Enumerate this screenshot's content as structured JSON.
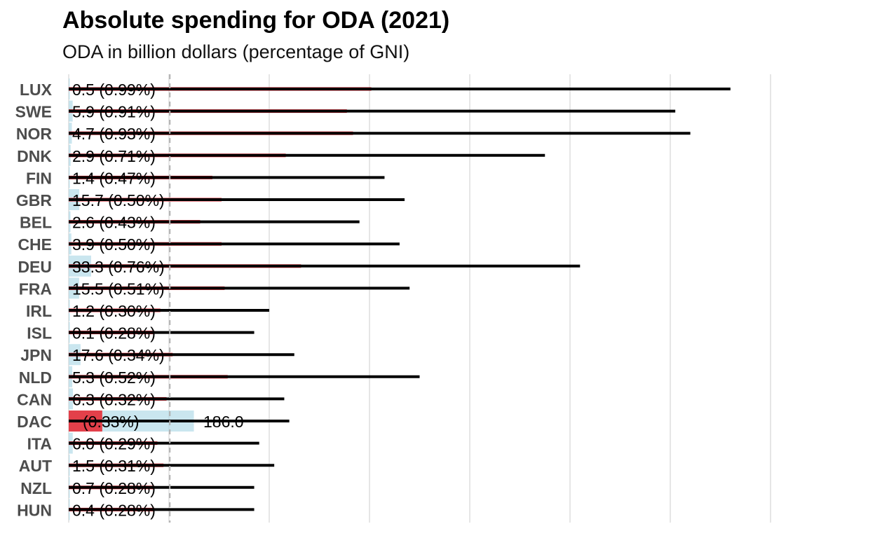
{
  "chart_data": {
    "type": "bar",
    "title": "Absolute spending for ODA (2021)",
    "subtitle": "ODA in billion dollars (percentage of GNI)",
    "xlabel": "",
    "ylabel": "",
    "grid": true,
    "colors": {
      "oda_bar": "#add8e6",
      "gni_share_bar": "#e8222d",
      "reference_line": "#000000",
      "dashed_line": "#b0b0b0",
      "grid": "#e6e6e6"
    },
    "categories": [
      "LUX",
      "SWE",
      "NOR",
      "DNK",
      "FIN",
      "GBR",
      "BEL",
      "CHE",
      "DEU",
      "FRA",
      "IRL",
      "ISL",
      "JPN",
      "NLD",
      "CAN",
      "DAC",
      "ITA",
      "AUT",
      "NZL",
      "HUN"
    ],
    "oda_billion": [
      0.5,
      5.9,
      4.7,
      2.9,
      1.4,
      15.7,
      2.6,
      3.9,
      33.3,
      15.5,
      1.2,
      0.1,
      17.6,
      5.3,
      6.3,
      186.0,
      6.0,
      1.5,
      0.7,
      0.4
    ],
    "gni_share_pct": [
      0.99,
      0.91,
      0.93,
      0.71,
      0.47,
      0.5,
      0.43,
      0.5,
      0.76,
      0.51,
      0.3,
      0.28,
      0.34,
      0.52,
      0.32,
      0.33,
      0.29,
      0.31,
      0.28,
      0.28
    ],
    "reference_values": [
      1.32,
      1.21,
      1.24,
      0.95,
      0.63,
      0.67,
      0.58,
      0.66,
      1.02,
      0.68,
      0.4,
      0.37,
      0.45,
      0.7,
      0.43,
      0.44,
      0.38,
      0.41,
      0.37,
      0.37
    ],
    "labels": [
      "0.5 (0.99%)",
      "5.9 (0.91%)",
      "4.7 (0.93%)",
      "2.9 (0.71%)",
      "1.4 (0.47%)",
      "15.7 (0.50%)",
      "2.6 (0.43%)",
      "3.9 (0.50%)",
      "33.3 (0.76%)",
      "15.5 (0.51%)",
      "1.2 (0.30%)",
      "0.1 (0.28%)",
      "17.6 (0.34%)",
      "5.3 (0.52%)",
      "6.3 (0.32%)",
      "(0.33%)",
      "6.0 (0.29%)",
      "1.5 (0.31%)",
      "0.7 (0.28%)",
      "0.4 (0.28%)"
    ],
    "dac_value_label": "186.0",
    "dac_index": 15,
    "dashed_line_value": 0.7
  }
}
